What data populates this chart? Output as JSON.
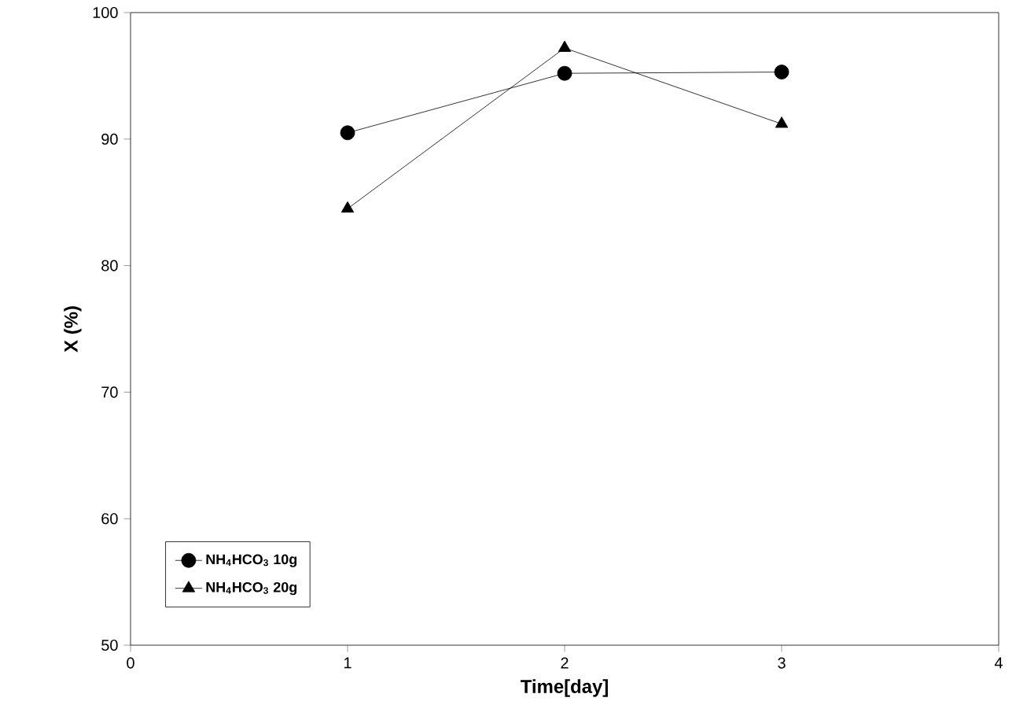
{
  "chart_data": {
    "type": "line",
    "xlabel": "Time[day]",
    "ylabel": "X (%)",
    "x": [
      1,
      2,
      3
    ],
    "xlim": [
      0,
      4
    ],
    "xticks": [
      0,
      1,
      2,
      3,
      4
    ],
    "ylim": [
      50,
      100
    ],
    "yticks": [
      50,
      60,
      70,
      80,
      90,
      100
    ],
    "grid": false,
    "legend": "bottom left",
    "line_style": "solid",
    "series": [
      {
        "name": "NH$_{4}$HCO$_{3}$ 10g",
        "color": "#000000",
        "marker": "circle",
        "values": [
          90.5,
          95.2,
          95.3
        ]
      },
      {
        "name": "NH$_{4}$HCO$_{3}$ 20g",
        "color": "#000000",
        "marker": "triangle",
        "values": [
          84.5,
          97.2,
          91.2
        ]
      }
    ]
  }
}
